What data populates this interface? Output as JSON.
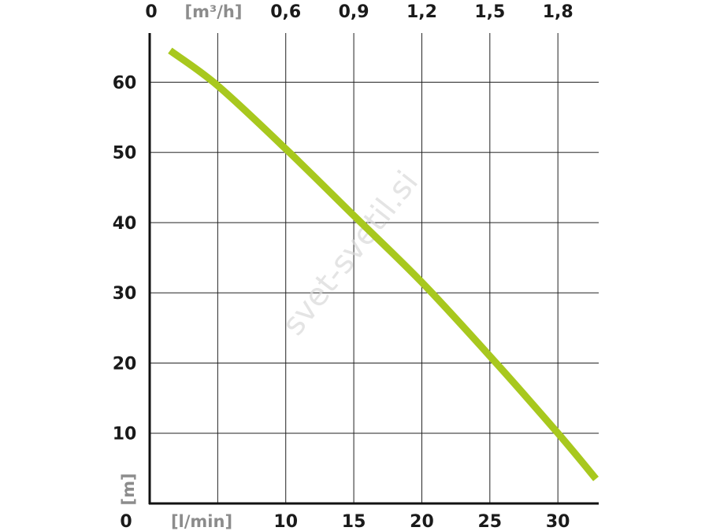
{
  "chart_data": {
    "type": "line",
    "xlabel": "[l/min]",
    "ylabel": "[m]",
    "x2label": "[m³/h]",
    "x_ticks": [
      10,
      15,
      20,
      25,
      30
    ],
    "x2_ticks": [
      "0,6",
      "0,9",
      "1,2",
      "1,5",
      "1,8"
    ],
    "y_ticks": [
      10,
      20,
      30,
      40,
      50,
      60
    ],
    "origin_label": "0",
    "x2_origin_label": "0",
    "xlim": [
      0,
      33
    ],
    "ylim": [
      0,
      67
    ],
    "grid": true,
    "series": [
      {
        "color": "#a8c81e",
        "x": [
          1.5,
          5,
          10,
          15,
          20,
          25,
          30,
          32.8
        ],
        "y": [
          64.5,
          59.5,
          50.5,
          41,
          31.5,
          21,
          10,
          3.5
        ]
      }
    ]
  },
  "watermark": "svet-svetil.si"
}
